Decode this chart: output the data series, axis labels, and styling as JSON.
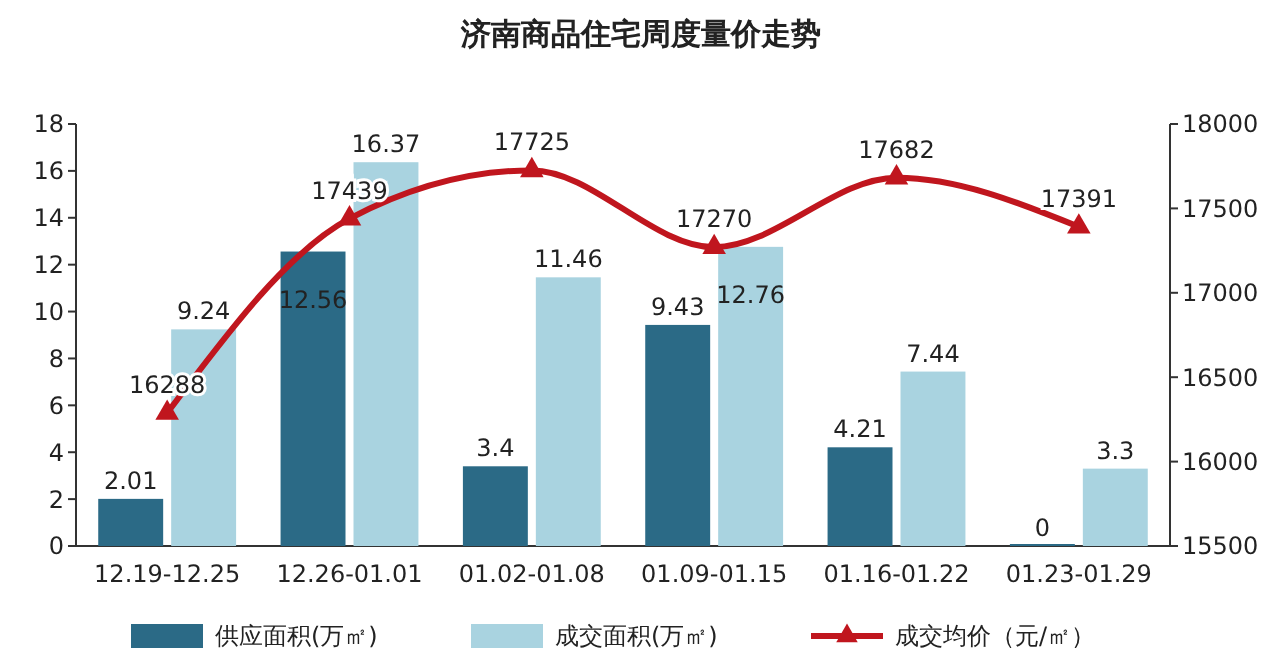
{
  "chart_data": {
    "type": "bar",
    "title": "济南商品住宅周度量价走势",
    "categories": [
      "12.19-12.25",
      "12.26-01.01",
      "01.02-01.08",
      "01.09-01.15",
      "01.16-01.22",
      "01.23-01.29"
    ],
    "series": [
      {
        "name": "供应面积(万㎡)",
        "color": "#2b6a86",
        "values": [
          2.01,
          12.56,
          3.4,
          9.43,
          4.21,
          0
        ]
      },
      {
        "name": "成交面积(万㎡)",
        "color": "#a9d3e0",
        "values": [
          9.24,
          16.37,
          11.46,
          12.76,
          7.44,
          3.3
        ]
      },
      {
        "name": "成交均价（元/㎡）",
        "type": "line",
        "axis": "y2",
        "color": "#c0161e",
        "marker": "triangle",
        "values": [
          16288,
          17439,
          17725,
          17270,
          17682,
          17391
        ]
      }
    ],
    "ylim": [
      0,
      18
    ],
    "yticks": [
      0,
      2,
      4,
      6,
      8,
      10,
      12,
      14,
      16,
      18
    ],
    "y2lim": [
      15500,
      18000
    ],
    "y2ticks": [
      15500,
      16000,
      16500,
      17000,
      17500,
      18000
    ],
    "data_labels": true,
    "legend": "bottom"
  }
}
